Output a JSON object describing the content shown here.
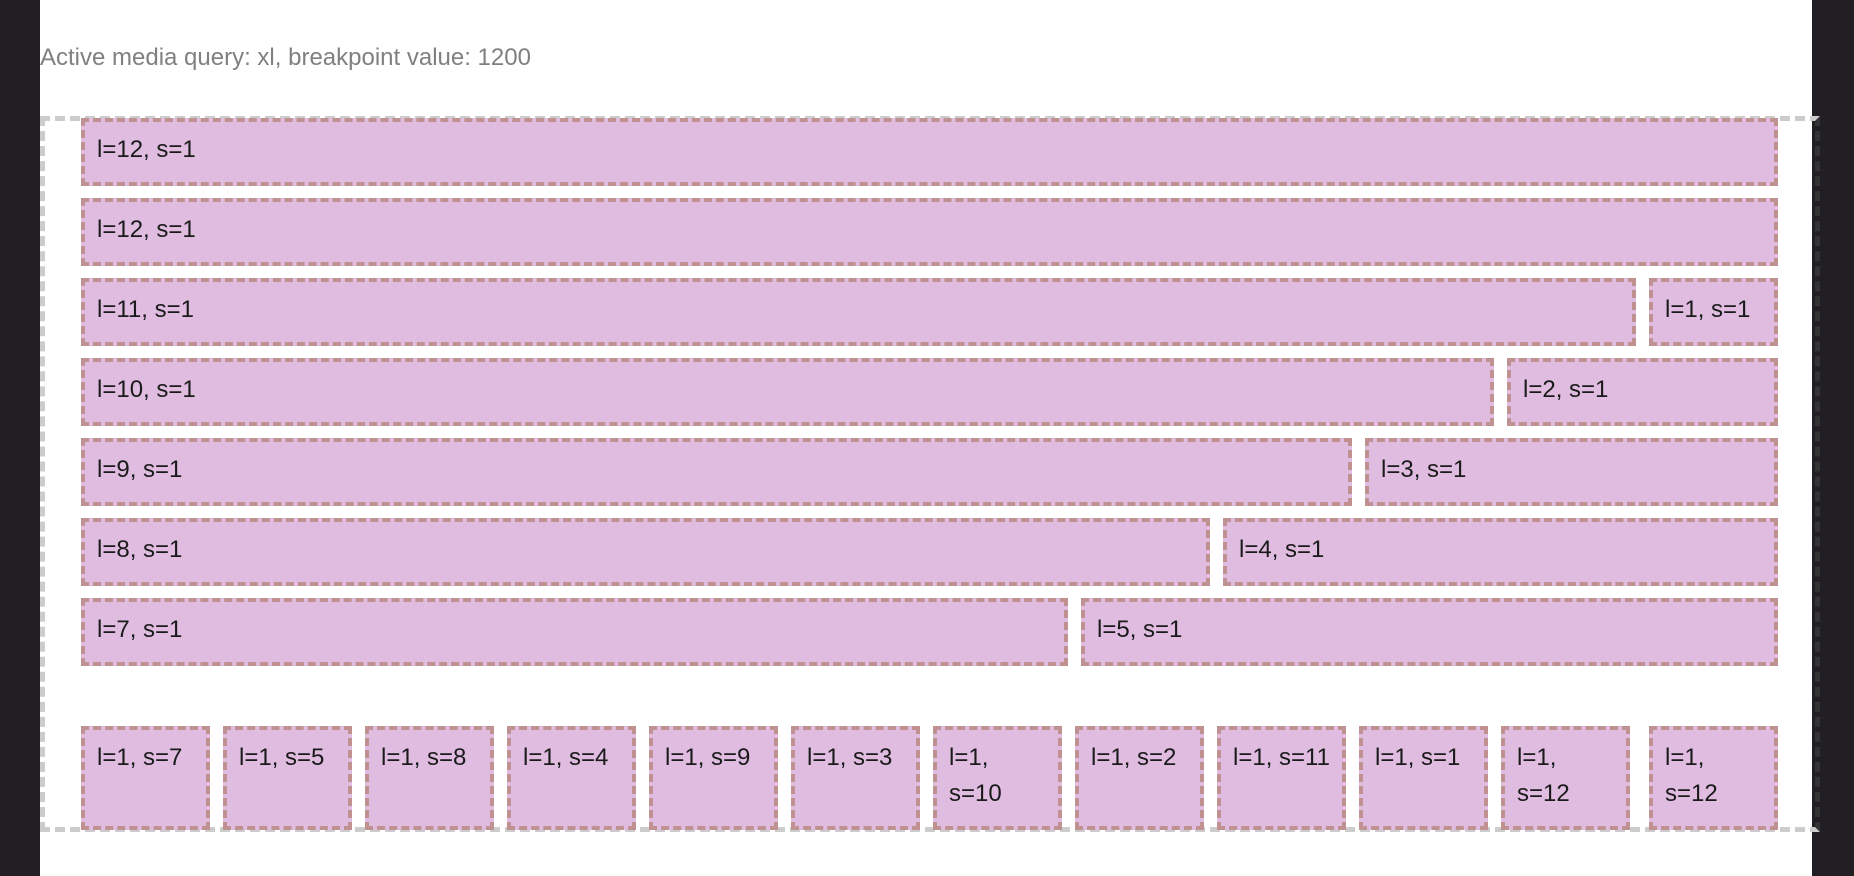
{
  "header": {
    "media_query_text": "Active media query: xl, breakpoint value: 1200"
  },
  "rows": [
    [
      "l=12, s=1"
    ],
    [
      "l=12, s=1"
    ],
    [
      "l=11, s=1",
      "l=1, s=1"
    ],
    [
      "l=10, s=1",
      "l=2, s=1"
    ],
    [
      "l=9, s=1",
      "l=3, s=1"
    ],
    [
      "l=8, s=1",
      "l=4, s=1"
    ],
    [
      "l=7, s=1",
      "l=5, s=1"
    ]
  ],
  "bottom_row": [
    "l=1, s=7",
    "l=1, s=5",
    "l=1, s=8",
    "l=1, s=4",
    "l=1, s=9",
    "l=1, s=3",
    "l=1, s=10",
    "l=1, s=2",
    "l=1, s=11",
    "l=1, s=1",
    "l=1, s=12",
    "l=1, s=12"
  ],
  "colors": {
    "page_background": "#221f24",
    "content_background": "#ffffff",
    "cell_fill": "#dfbce0",
    "cell_border": "#bf9191",
    "container_border": "#cccccc",
    "muted_text": "#808080"
  }
}
